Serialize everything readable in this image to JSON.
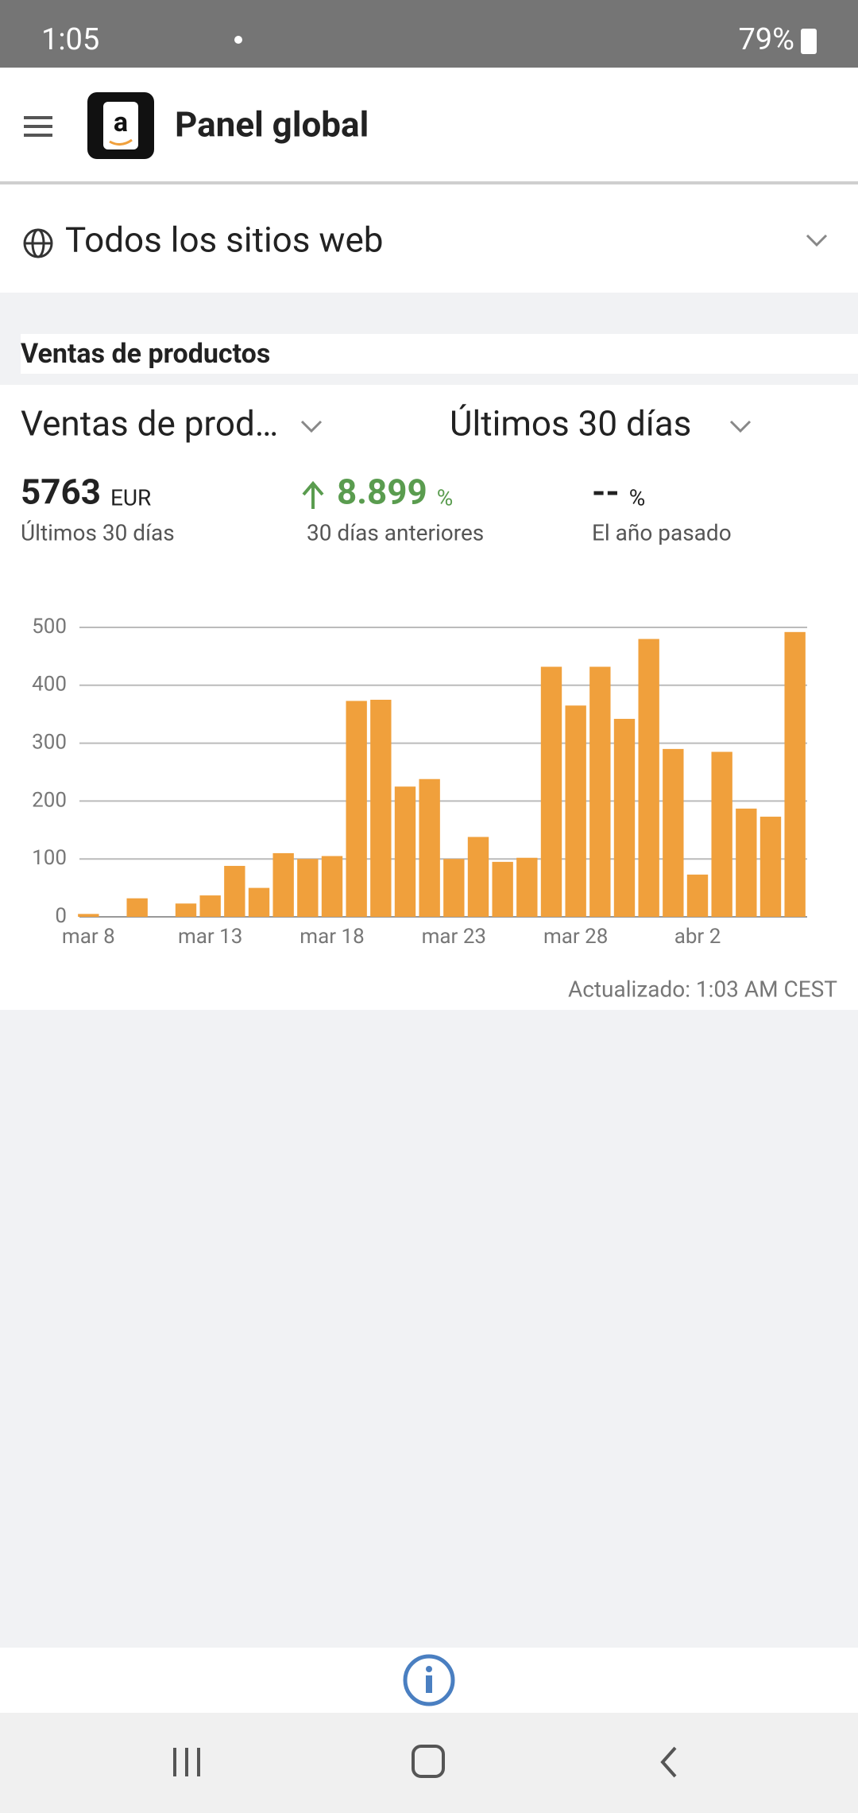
{
  "status_bar": {
    "time": "1:05",
    "battery": "79%"
  },
  "app_bar": {
    "title": "Panel global"
  },
  "site_selector": {
    "label": "Todos los sitios web"
  },
  "section": {
    "title": "Ventas de productos"
  },
  "filters": {
    "metric": "Ventas de prod…",
    "period": "Últimos 30 días"
  },
  "metrics": [
    {
      "value": "5763",
      "unit": "EUR",
      "caption": "Últimos 30 días"
    },
    {
      "value": "8.899",
      "unit": "%",
      "caption": "30 días anteriores"
    },
    {
      "value": "--",
      "unit": "%",
      "caption": "El año pasado"
    }
  ],
  "chart_data": {
    "type": "bar",
    "categories": [
      "mar 8",
      null,
      null,
      null,
      null,
      "mar 13",
      null,
      null,
      null,
      null,
      "mar 18",
      null,
      null,
      null,
      null,
      "mar 23",
      null,
      null,
      null,
      null,
      "mar 28",
      null,
      null,
      null,
      null,
      "abr 2",
      null,
      null,
      null,
      null
    ],
    "values": [
      5,
      0,
      32,
      0,
      23,
      37,
      88,
      50,
      110,
      100,
      105,
      373,
      375,
      225,
      238,
      100,
      138,
      95,
      102,
      432,
      365,
      432,
      342,
      480,
      290,
      73,
      285,
      187,
      173,
      492
    ],
    "color": "#f0a03c",
    "ylim": [
      0,
      500
    ],
    "yticks": [
      0,
      100,
      200,
      300,
      400,
      500
    ],
    "grid": true
  },
  "footer": {
    "updated": "Actualizado: 1:03 AM CEST"
  }
}
